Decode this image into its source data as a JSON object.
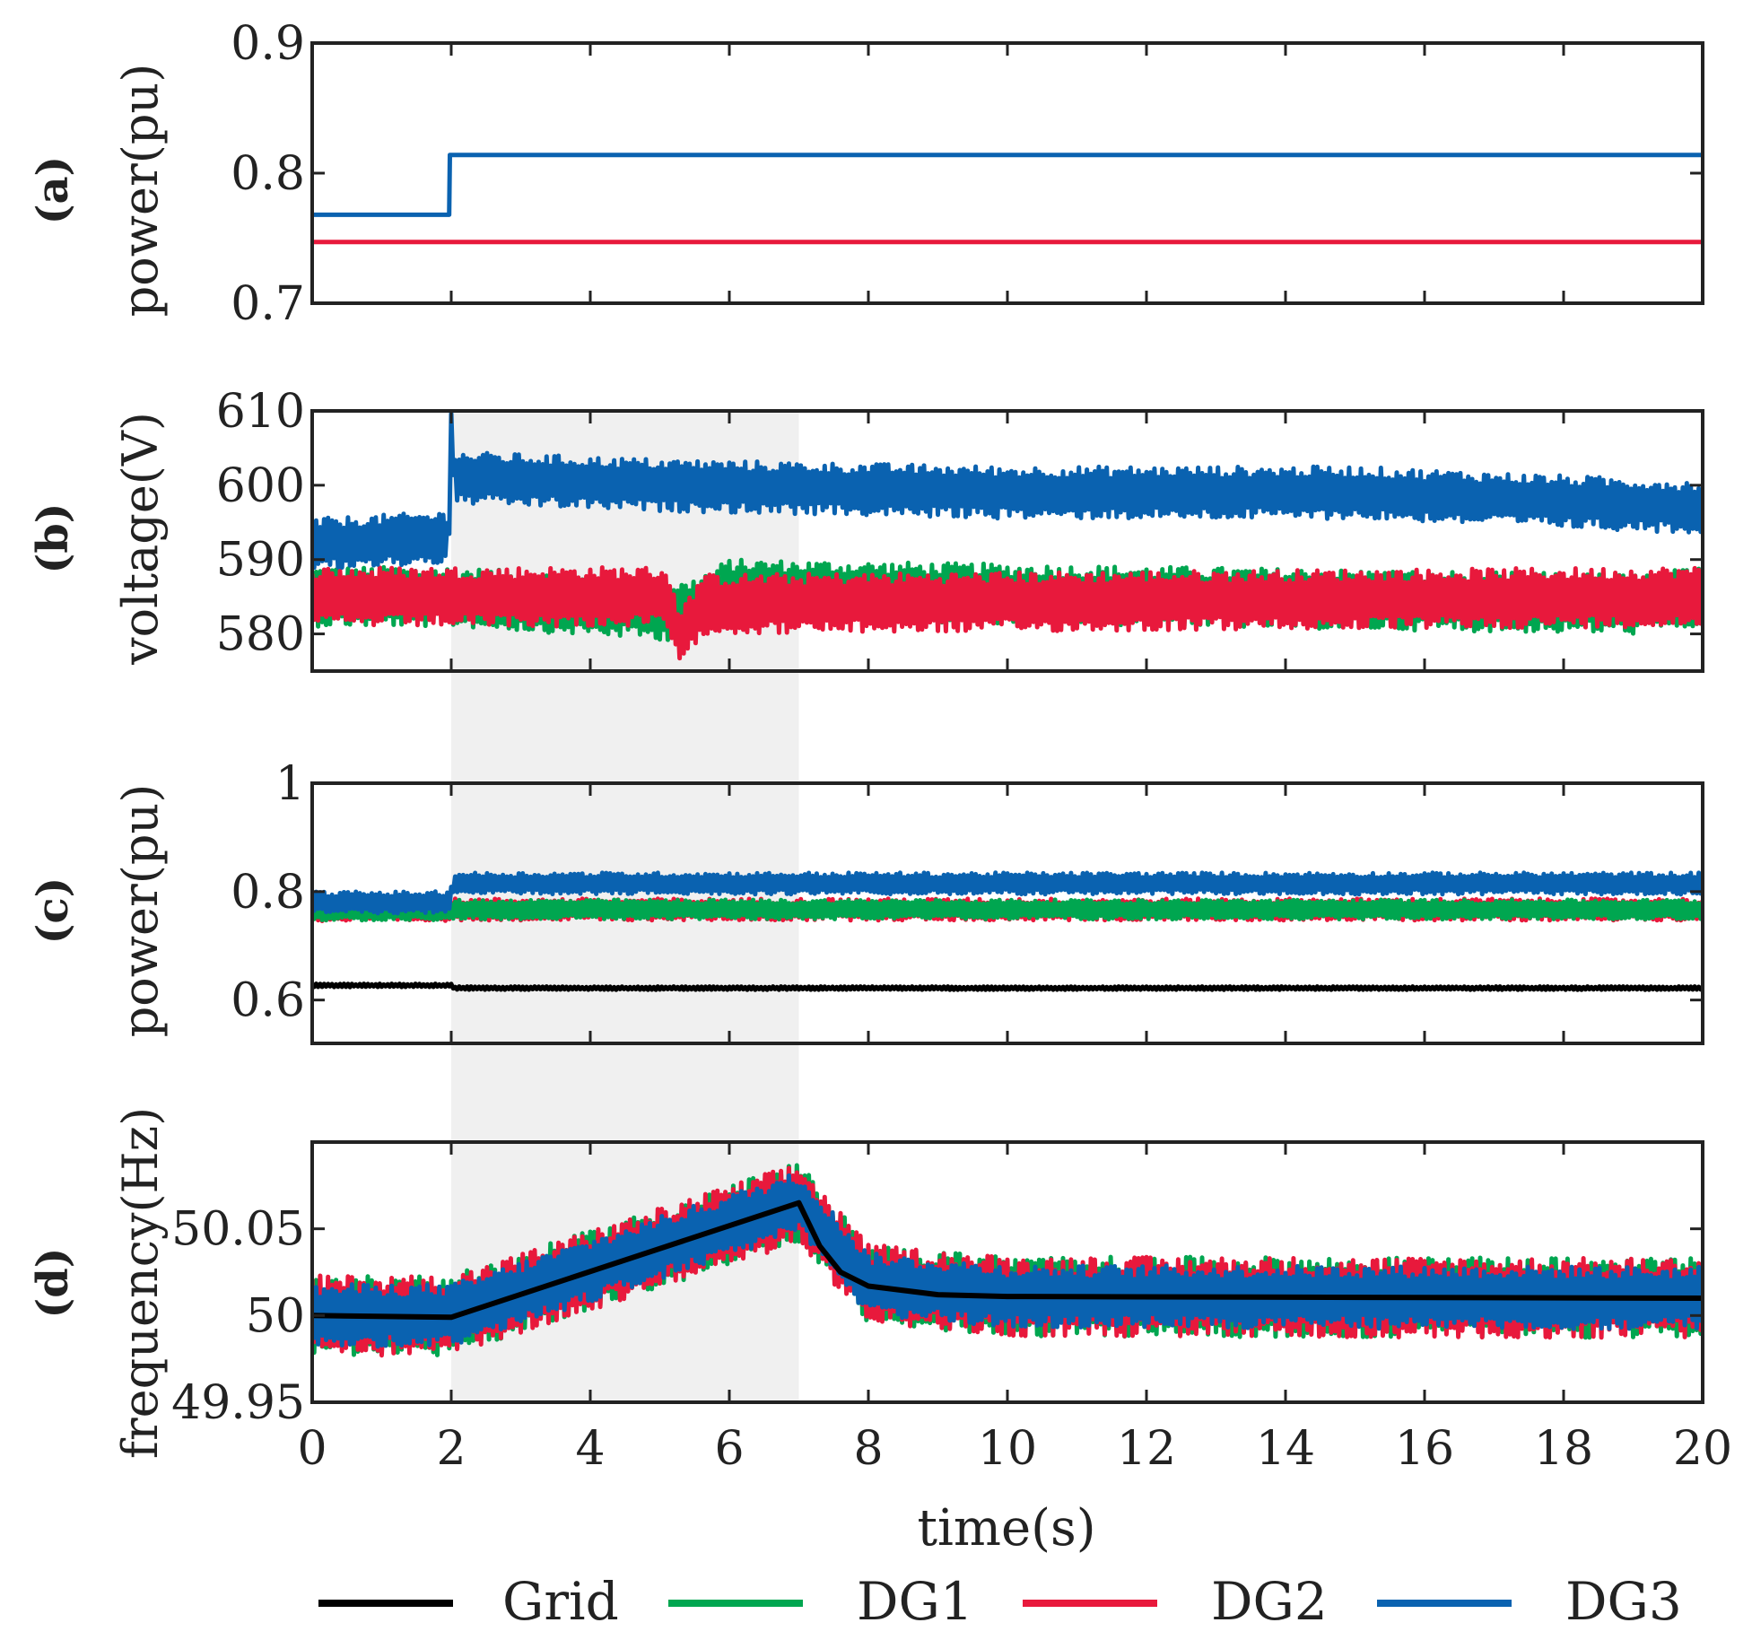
{
  "chart_data": {
    "type": "line",
    "xlabel": "time(s)",
    "x_range": [
      0,
      20
    ],
    "x_ticks": [
      "0",
      "2",
      "4",
      "6",
      "8",
      "10",
      "12",
      "14",
      "16",
      "18",
      "20"
    ],
    "highlight_interval": [
      2,
      7
    ],
    "colors": {
      "Grid": "#000000",
      "DG1": "#00a650",
      "DG2": "#e8193c",
      "DG3": "#0a62b0",
      "highlight": "#f0f0f0"
    },
    "legend": [
      "Grid",
      "DG1",
      "DG2",
      "DG3"
    ],
    "legend_position": "bottom",
    "panels": [
      {
        "id": "a",
        "panel_label": "(a)",
        "ylabel": "power(pu)",
        "ylim": [
          0.7,
          0.9
        ],
        "y_ticks": [
          "0.7",
          "0.8",
          "0.9"
        ],
        "series": [
          {
            "name": "DG2",
            "points": [
              [
                0,
                0.747
              ],
              [
                20,
                0.747
              ]
            ]
          },
          {
            "name": "DG3",
            "points": [
              [
                0,
                0.768
              ],
              [
                1.97,
                0.768
              ],
              [
                1.98,
                0.814
              ],
              [
                20,
                0.814
              ]
            ]
          }
        ]
      },
      {
        "id": "b",
        "panel_label": "(b)",
        "ylabel": "voltage(V)",
        "ylim": [
          575,
          610
        ],
        "y_ticks": [
          "580",
          "590",
          "600",
          "610"
        ],
        "series": [
          {
            "name": "DG1",
            "points": [
              [
                0,
                585
              ],
              [
                2,
                585
              ],
              [
                5.4,
                583
              ],
              [
                6,
                586
              ],
              [
                19,
                584
              ],
              [
                20,
                585
              ]
            ],
            "band": 4
          },
          {
            "name": "DG2",
            "points": [
              [
                0,
                585
              ],
              [
                5.1,
                585
              ],
              [
                5.3,
                579
              ],
              [
                5.6,
                584
              ],
              [
                20,
                585
              ]
            ],
            "band": 4
          },
          {
            "name": "DG3",
            "points": [
              [
                0,
                592
              ],
              [
                1.97,
                593
              ],
              [
                1.98,
                610
              ],
              [
                2.05,
                601
              ],
              [
                5,
                600
              ],
              [
                10,
                599
              ],
              [
                15,
                599
              ],
              [
                20,
                597
              ]
            ],
            "band": 3.5
          }
        ]
      },
      {
        "id": "c",
        "panel_label": "(c)",
        "ylabel": "power(pu)",
        "ylim": [
          0.52,
          1.0
        ],
        "y_ticks": [
          "0.6",
          "0.8",
          "1"
        ],
        "series": [
          {
            "name": "Grid",
            "points": [
              [
                0,
                0.627
              ],
              [
                2,
                0.627
              ],
              [
                2.05,
                0.622
              ],
              [
                20,
                0.622
              ]
            ],
            "band": 0.003
          },
          {
            "name": "DG2",
            "points": [
              [
                0,
                0.765
              ],
              [
                2,
                0.765
              ],
              [
                2.05,
                0.767
              ],
              [
                20,
                0.767
              ]
            ],
            "band": 0.02
          },
          {
            "name": "DG1",
            "points": [
              [
                0,
                0.765
              ],
              [
                2,
                0.765
              ],
              [
                2.05,
                0.767
              ],
              [
                20,
                0.767
              ]
            ],
            "band": 0.018
          },
          {
            "name": "DG3",
            "points": [
              [
                0,
                0.78
              ],
              [
                1.98,
                0.78
              ],
              [
                2.02,
                0.815
              ],
              [
                20,
                0.815
              ]
            ],
            "band": 0.02
          }
        ]
      },
      {
        "id": "d",
        "panel_label": "(d)",
        "ylabel": "frequency(Hz)",
        "ylim": [
          49.95,
          50.1
        ],
        "y_ticks": [
          "49.95",
          "50",
          "50.05"
        ],
        "series": [
          {
            "name": "DG1",
            "points": [
              [
                0,
                50.0
              ],
              [
                2,
                50.0
              ],
              [
                7,
                50.065
              ],
              [
                8,
                50.018
              ],
              [
                10,
                50.011
              ],
              [
                20,
                50.01
              ]
            ],
            "band": 0.023
          },
          {
            "name": "DG2",
            "points": [
              [
                0,
                50.0
              ],
              [
                2,
                50.0
              ],
              [
                7,
                50.065
              ],
              [
                8,
                50.018
              ],
              [
                10,
                50.011
              ],
              [
                20,
                50.01
              ]
            ],
            "band": 0.023
          },
          {
            "name": "DG3",
            "points": [
              [
                0,
                50.0
              ],
              [
                2,
                50.0
              ],
              [
                7,
                50.065
              ],
              [
                8,
                50.018
              ],
              [
                10,
                50.011
              ],
              [
                20,
                50.01
              ]
            ],
            "band": 0.018
          },
          {
            "name": "Grid",
            "points": [
              [
                0,
                50.0
              ],
              [
                2,
                49.999
              ],
              [
                7,
                50.065
              ],
              [
                7.3,
                50.04
              ],
              [
                7.6,
                50.025
              ],
              [
                8,
                50.017
              ],
              [
                9,
                50.012
              ],
              [
                10,
                50.011
              ],
              [
                20,
                50.01
              ]
            ]
          }
        ]
      }
    ]
  }
}
